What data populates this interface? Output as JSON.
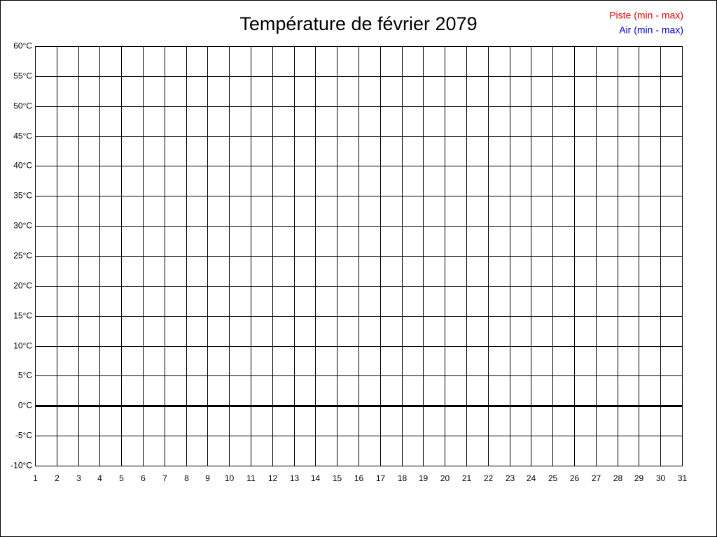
{
  "chart_data": {
    "type": "line",
    "title": "Température de février 2079",
    "x": [
      1,
      2,
      3,
      4,
      5,
      6,
      7,
      8,
      9,
      10,
      11,
      12,
      13,
      14,
      15,
      16,
      17,
      18,
      19,
      20,
      21,
      22,
      23,
      24,
      25,
      26,
      27,
      28,
      29,
      30,
      31
    ],
    "xlim": [
      1,
      31
    ],
    "ylim": [
      -10,
      60
    ],
    "yticks": [
      {
        "value": -10,
        "label": "-10°C"
      },
      {
        "value": -5,
        "label": "-5°C"
      },
      {
        "value": 0,
        "label": "0°C"
      },
      {
        "value": 5,
        "label": "5°C"
      },
      {
        "value": 10,
        "label": "10°C"
      },
      {
        "value": 15,
        "label": "15°C"
      },
      {
        "value": 20,
        "label": "20°C"
      },
      {
        "value": 25,
        "label": "25°C"
      },
      {
        "value": 30,
        "label": "30°C"
      },
      {
        "value": 35,
        "label": "35°C"
      },
      {
        "value": 40,
        "label": "40°C"
      },
      {
        "value": 45,
        "label": "45°C"
      },
      {
        "value": 50,
        "label": "50°C"
      },
      {
        "value": 55,
        "label": "55°C"
      },
      {
        "value": 60,
        "label": "60°C"
      }
    ],
    "grid": true,
    "legend": "upper right",
    "series": [
      {
        "name": "Piste (min - max)",
        "color": "#dd0000",
        "values": [
          null,
          null,
          null,
          null,
          null,
          null,
          null,
          null,
          null,
          null,
          null,
          null,
          null,
          null,
          null,
          null,
          null,
          null,
          null,
          null,
          null,
          null,
          null,
          null,
          null,
          null,
          null,
          null,
          null,
          null,
          null
        ]
      },
      {
        "name": "Air (min - max)",
        "color": "#0000cc",
        "values": [
          null,
          null,
          null,
          null,
          null,
          null,
          null,
          null,
          null,
          null,
          null,
          null,
          null,
          null,
          null,
          null,
          null,
          null,
          null,
          null,
          null,
          null,
          null,
          null,
          null,
          null,
          null,
          null,
          null,
          null,
          null
        ]
      }
    ]
  }
}
